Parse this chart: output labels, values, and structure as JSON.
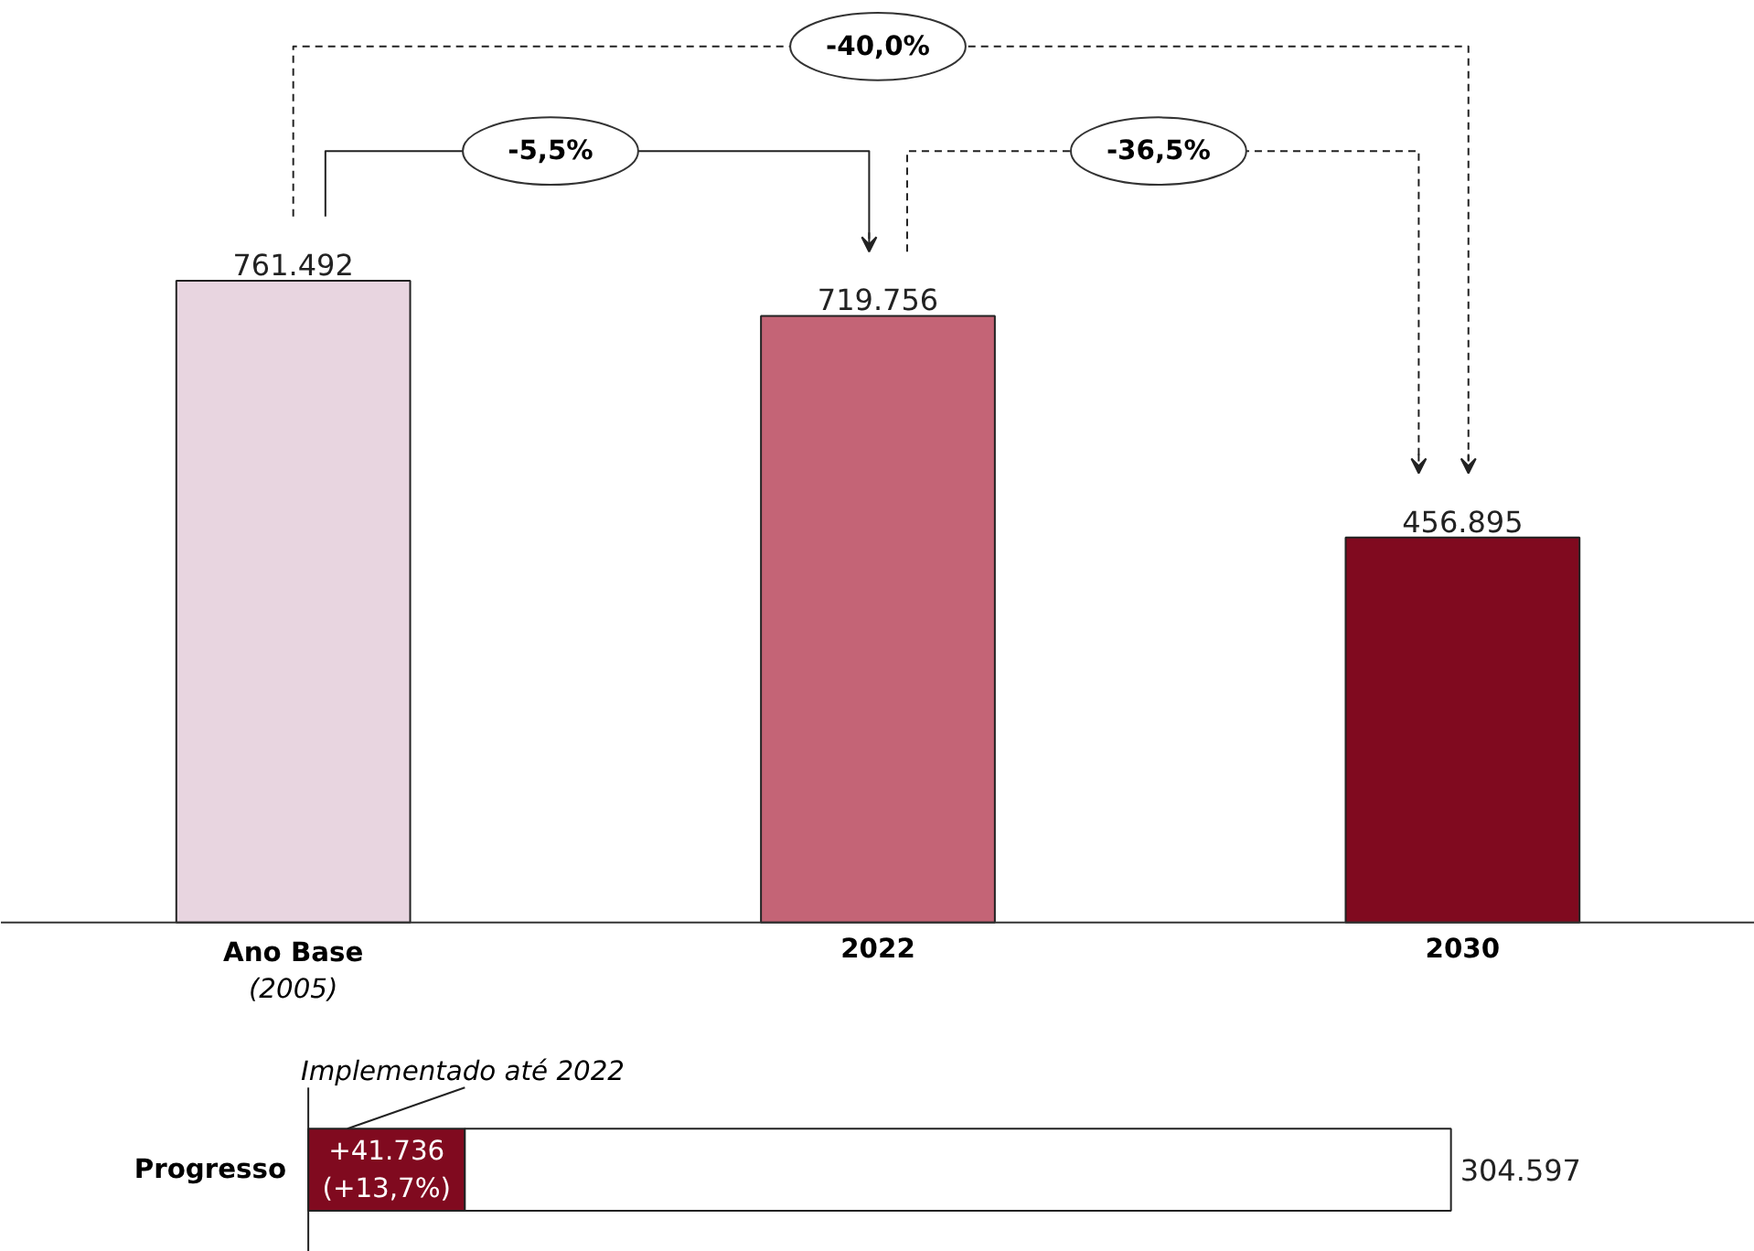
{
  "chart_data": [
    {
      "type": "bar",
      "categories": [
        "Ano Base\n(2005)",
        "2022",
        "2030"
      ],
      "values": [
        761492,
        719756,
        456895
      ],
      "colors": [
        "#e8d5e0",
        "#c46476",
        "#800a1f"
      ],
      "data_labels": true,
      "value_labels": [
        "761.492",
        "719.756",
        "456.895"
      ],
      "annotations": [
        "-40,0%",
        "-5,5%",
        "-36,5%"
      ]
    },
    {
      "type": "bar",
      "orientation": "horizontal",
      "stacked": true,
      "categories": [
        "Progresso"
      ],
      "series": [
        {
          "color": "#800a1f",
          "values": [
            41736
          ],
          "value_labels": [
            "+41.736\n(+13,7%)"
          ]
        },
        {
          "color": "#ffffff",
          "values": [
            262861
          ]
        }
      ],
      "totals": [
        "304.597"
      ],
      "annotations": [
        "Implementado até 2022"
      ]
    }
  ]
}
